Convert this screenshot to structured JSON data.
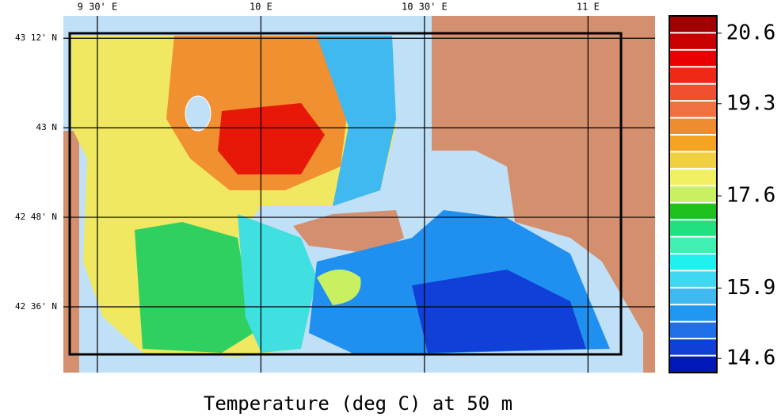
{
  "map": {
    "title": "Temperature (deg C) at 50 m",
    "xlim": [
      9.396,
      11.205
    ],
    "ylim": [
      42.453,
      43.25
    ],
    "xticks": [
      {
        "value": 9.5,
        "label": "9 30' E"
      },
      {
        "value": 10,
        "label": "10 E"
      },
      {
        "value": 10.5,
        "label": "10 30' E"
      },
      {
        "value": 11,
        "label": "11 E"
      }
    ],
    "yticks": [
      {
        "value": 43.2,
        "label": "43 12' N"
      },
      {
        "value": 43,
        "label": "43 N"
      },
      {
        "value": 42.8,
        "label": "42 48' N"
      },
      {
        "value": 42.6,
        "label": "42 36' N"
      }
    ],
    "grid": true,
    "colorbar": {
      "lim": [
        14.34,
        20.92
      ],
      "ticks": [
        20.6,
        19.3,
        17.6,
        15.9,
        14.6
      ],
      "colors": [
        "#a00000",
        "#c80000",
        "#e80000",
        "#f02818",
        "#f05030",
        "#f07040",
        "#f08c30",
        "#f4a420",
        "#f0d040",
        "#f0f060",
        "#c8f060",
        "#20c020",
        "#20e080",
        "#40f0b0",
        "#20f0f0",
        "#40d8f0",
        "#40b8f0",
        "#2098f0",
        "#2070e8",
        "#1040d8",
        "#0018b8"
      ]
    }
  }
}
